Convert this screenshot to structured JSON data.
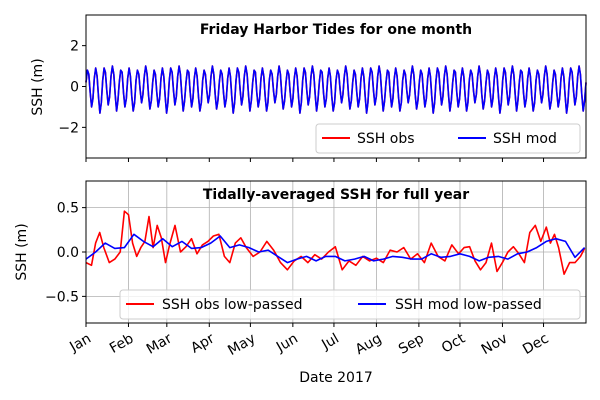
{
  "chart_data": [
    {
      "type": "line",
      "title": "Friday Harbor Tides for one month",
      "ylabel": "SSH (m)",
      "xlabel": "",
      "ylim": [
        -3.5,
        3.5
      ],
      "yticks": [
        -2,
        0,
        2
      ],
      "ytick_labels": [
        "−2",
        "0",
        "2"
      ],
      "xlim_days": [
        0,
        30
      ],
      "grid": false,
      "legend": {
        "placement": "lower-right",
        "ncol": 2
      },
      "series": [
        {
          "name": "SSH obs",
          "color": "#ff0000",
          "x_hours": [
            0,
            2,
            4,
            6,
            8,
            10,
            12,
            14,
            16,
            18,
            20,
            22,
            24,
            26,
            28,
            30,
            32,
            34,
            36,
            38,
            40,
            42,
            44,
            46,
            48,
            50,
            52,
            54,
            56,
            58,
            60,
            62,
            64,
            66,
            68,
            70,
            72,
            74,
            76,
            78,
            80,
            82,
            84,
            86,
            88,
            90,
            92,
            94,
            96
          ],
          "values": [
            0.2,
            0.8,
            0.6,
            -0.3,
            -1.0,
            -0.6,
            0.4,
            0.9,
            0.5,
            -0.5,
            -1.3,
            -0.8,
            0.3,
            0.9,
            0.7,
            -0.2,
            -0.9,
            -0.5,
            0.5,
            1.0,
            0.6,
            -0.4,
            -1.2,
            -0.7,
            0.2,
            0.8,
            0.7,
            -0.3,
            -1.0,
            -0.6,
            0.4,
            0.9,
            0.5,
            -0.5,
            -1.2,
            -0.8,
            0.3,
            0.8,
            0.6,
            -0.2,
            -0.8,
            -0.4,
            0.5,
            1.0,
            0.6,
            -0.4,
            -1.1,
            -0.7,
            0.2
          ]
        },
        {
          "name": "SSH mod",
          "color": "#0000ff",
          "x_hours": [
            0,
            2,
            4,
            6,
            8,
            10,
            12,
            14,
            16,
            18,
            20,
            22,
            24,
            26,
            28,
            30,
            32,
            34,
            36,
            38,
            40,
            42,
            44,
            46,
            48,
            50,
            52,
            54,
            56,
            58,
            60,
            62,
            64,
            66,
            68,
            70,
            72,
            74,
            76,
            78,
            80,
            82,
            84,
            86,
            88,
            90,
            92,
            94,
            96
          ],
          "values": [
            0.2,
            0.8,
            0.6,
            -0.3,
            -1.0,
            -0.6,
            0.4,
            0.9,
            0.5,
            -0.5,
            -1.3,
            -0.8,
            0.3,
            0.9,
            0.7,
            -0.2,
            -0.9,
            -0.5,
            0.5,
            1.0,
            0.6,
            -0.4,
            -1.2,
            -0.7,
            0.2,
            0.8,
            0.7,
            -0.3,
            -1.0,
            -0.6,
            0.4,
            0.9,
            0.5,
            -0.5,
            -1.2,
            -0.8,
            0.3,
            0.8,
            0.6,
            -0.2,
            -0.8,
            -0.4,
            0.5,
            1.0,
            0.6,
            -0.4,
            -1.1,
            -0.7,
            0.2
          ]
        }
      ]
    },
    {
      "type": "line",
      "title": "Tidally-averaged SSH for full year",
      "ylabel": "SSH (m)",
      "xlabel": "Date 2017",
      "ylim": [
        -0.8,
        0.8
      ],
      "yticks": [
        -0.5,
        0.0,
        0.5
      ],
      "ytick_labels": [
        "−0.5",
        "0.0",
        "0.5"
      ],
      "categories": [
        "Jan",
        "Feb",
        "Mar",
        "Apr",
        "May",
        "Jun",
        "Jul",
        "Aug",
        "Sep",
        "Oct",
        "Nov",
        "Dec"
      ],
      "month_start_days": [
        0,
        31,
        59,
        90,
        120,
        151,
        181,
        212,
        243,
        273,
        304,
        334
      ],
      "xlim_days": [
        0,
        365
      ],
      "grid": true,
      "legend": {
        "placement": "lower-center",
        "ncol": 2
      },
      "series": [
        {
          "name": "SSH obs low-passed",
          "color": "#ff0000",
          "x": [
            "2017-01-01",
            "2017-01-05",
            "2017-01-08",
            "2017-01-11",
            "2017-01-14",
            "2017-01-18",
            "2017-01-22",
            "2017-01-26",
            "2017-01-29",
            "2017-02-01",
            "2017-02-04",
            "2017-02-07",
            "2017-02-10",
            "2017-02-13",
            "2017-02-16",
            "2017-02-19",
            "2017-02-22",
            "2017-02-25",
            "2017-02-28",
            "2017-03-03",
            "2017-03-07",
            "2017-03-11",
            "2017-03-15",
            "2017-03-19",
            "2017-03-23",
            "2017-03-27",
            "2017-03-31",
            "2017-04-04",
            "2017-04-08",
            "2017-04-12",
            "2017-04-16",
            "2017-04-20",
            "2017-04-24",
            "2017-04-28",
            "2017-05-03",
            "2017-05-08",
            "2017-05-13",
            "2017-05-18",
            "2017-05-23",
            "2017-05-28",
            "2017-06-02",
            "2017-06-07",
            "2017-06-12",
            "2017-06-17",
            "2017-06-22",
            "2017-06-27",
            "2017-07-02",
            "2017-07-07",
            "2017-07-12",
            "2017-07-17",
            "2017-07-22",
            "2017-07-27",
            "2017-08-01",
            "2017-08-06",
            "2017-08-11",
            "2017-08-16",
            "2017-08-21",
            "2017-08-26",
            "2017-08-31",
            "2017-09-05",
            "2017-09-10",
            "2017-09-15",
            "2017-09-20",
            "2017-09-25",
            "2017-09-30",
            "2017-10-04",
            "2017-10-08",
            "2017-10-12",
            "2017-10-16",
            "2017-10-20",
            "2017-10-24",
            "2017-10-28",
            "2017-11-01",
            "2017-11-05",
            "2017-11-09",
            "2017-11-13",
            "2017-11-17",
            "2017-11-21",
            "2017-11-25",
            "2017-11-29",
            "2017-12-03",
            "2017-12-06",
            "2017-12-09",
            "2017-12-12",
            "2017-12-16",
            "2017-12-20",
            "2017-12-24",
            "2017-12-28",
            "2017-12-31"
          ],
          "values": [
            -0.12,
            -0.15,
            0.1,
            0.22,
            0.05,
            -0.12,
            -0.08,
            0.0,
            0.46,
            0.42,
            0.1,
            -0.05,
            0.05,
            0.12,
            0.4,
            0.05,
            0.3,
            0.16,
            -0.12,
            0.08,
            0.3,
            0.0,
            0.06,
            0.15,
            -0.02,
            0.08,
            0.12,
            0.18,
            0.2,
            -0.05,
            -0.12,
            0.1,
            0.16,
            0.05,
            -0.05,
            0.0,
            0.12,
            0.02,
            -0.12,
            -0.2,
            -0.1,
            -0.05,
            -0.12,
            -0.03,
            -0.08,
            0.0,
            0.06,
            -0.2,
            -0.1,
            -0.15,
            -0.05,
            -0.1,
            -0.07,
            -0.12,
            0.02,
            0.0,
            0.05,
            -0.08,
            -0.02,
            -0.12,
            0.1,
            -0.05,
            -0.1,
            0.08,
            -0.02,
            0.05,
            0.06,
            -0.1,
            -0.2,
            -0.12,
            0.1,
            -0.22,
            -0.12,
            0.0,
            0.06,
            -0.02,
            -0.12,
            0.22,
            0.3,
            0.12,
            0.28,
            0.1,
            0.2,
            0.05,
            -0.25,
            -0.12,
            -0.12,
            -0.05,
            0.04
          ]
        },
        {
          "name": "SSH mod low-passed",
          "color": "#0000ff",
          "x": [
            "2017-01-01",
            "2017-01-08",
            "2017-01-15",
            "2017-01-22",
            "2017-01-29",
            "2017-02-05",
            "2017-02-12",
            "2017-02-19",
            "2017-02-26",
            "2017-03-05",
            "2017-03-12",
            "2017-03-19",
            "2017-03-26",
            "2017-04-02",
            "2017-04-09",
            "2017-04-16",
            "2017-04-23",
            "2017-04-30",
            "2017-05-07",
            "2017-05-14",
            "2017-05-21",
            "2017-05-28",
            "2017-06-04",
            "2017-06-11",
            "2017-06-18",
            "2017-06-25",
            "2017-07-02",
            "2017-07-09",
            "2017-07-16",
            "2017-07-23",
            "2017-07-30",
            "2017-08-06",
            "2017-08-13",
            "2017-08-20",
            "2017-08-27",
            "2017-09-03",
            "2017-09-10",
            "2017-09-17",
            "2017-09-24",
            "2017-10-01",
            "2017-10-08",
            "2017-10-15",
            "2017-10-22",
            "2017-10-29",
            "2017-11-05",
            "2017-11-12",
            "2017-11-19",
            "2017-11-26",
            "2017-12-03",
            "2017-12-10",
            "2017-12-17",
            "2017-12-24",
            "2017-12-31"
          ],
          "values": [
            -0.08,
            0.0,
            0.1,
            0.04,
            0.05,
            0.2,
            0.12,
            0.06,
            0.15,
            0.06,
            0.12,
            0.04,
            0.05,
            0.1,
            0.18,
            0.05,
            0.08,
            0.05,
            0.0,
            0.02,
            -0.05,
            -0.12,
            -0.08,
            -0.05,
            -0.1,
            -0.05,
            -0.05,
            -0.1,
            -0.08,
            -0.05,
            -0.1,
            -0.08,
            -0.05,
            -0.06,
            -0.08,
            -0.08,
            -0.02,
            -0.06,
            -0.05,
            -0.02,
            -0.05,
            -0.1,
            -0.06,
            -0.05,
            -0.08,
            -0.02,
            0.0,
            0.05,
            0.12,
            0.15,
            0.12,
            -0.06,
            0.05
          ]
        }
      ]
    }
  ]
}
